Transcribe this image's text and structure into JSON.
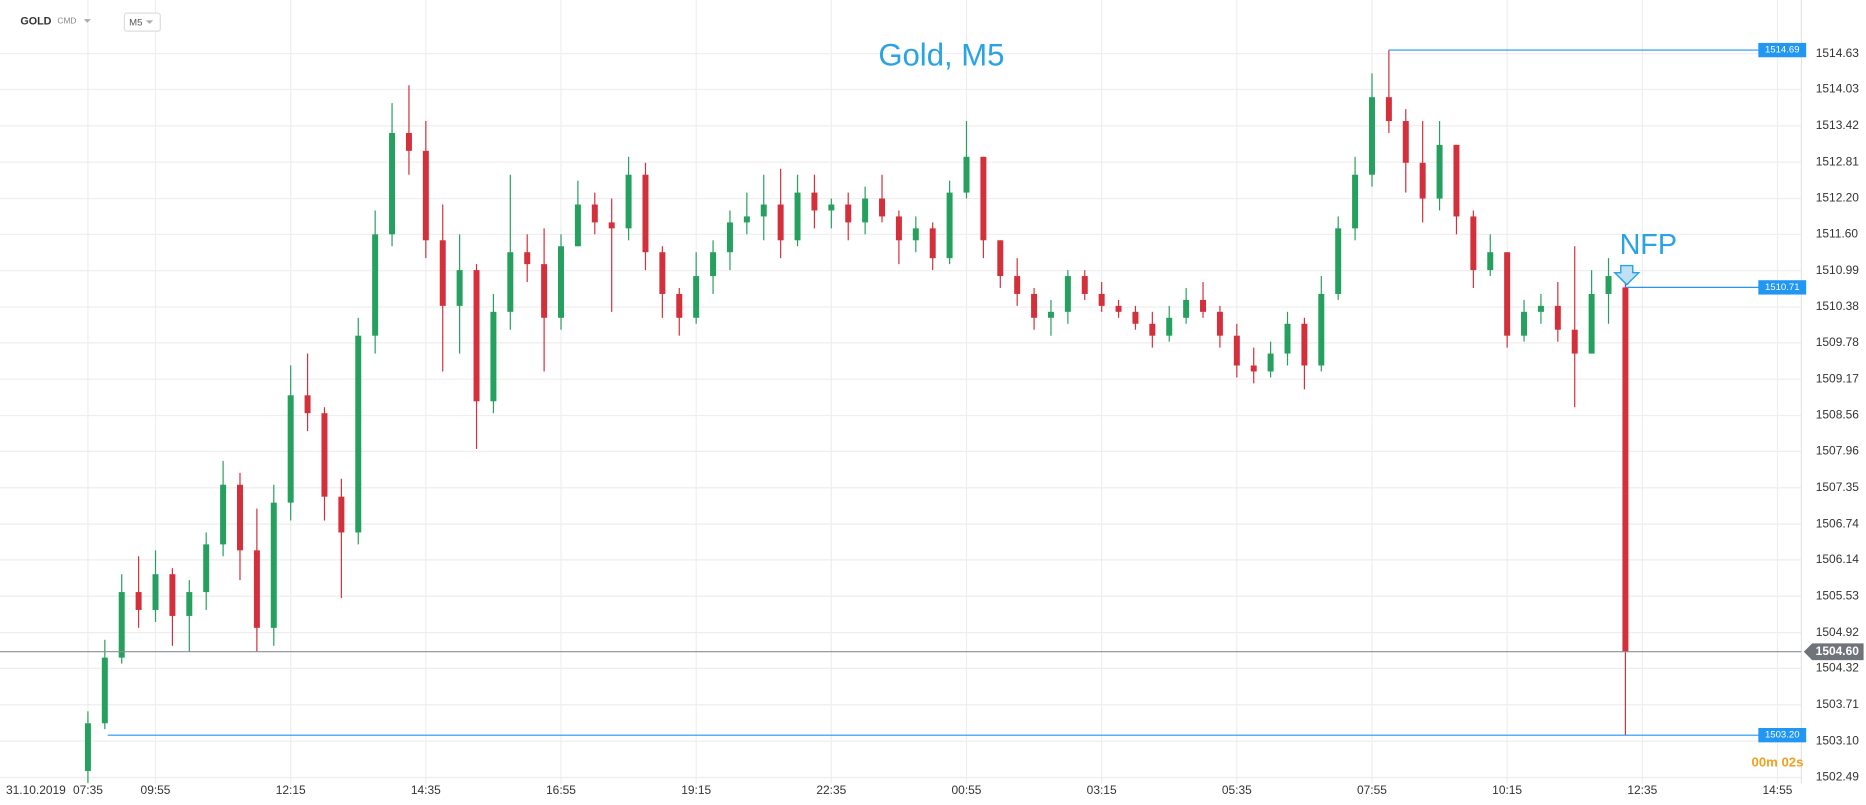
{
  "toolbar": {
    "symbol": "GOLD",
    "kind": "CMD",
    "timeframe": "M5"
  },
  "chart_data": {
    "type": "candlestick",
    "title": "Gold, M5",
    "date": "31.10.2019",
    "annotation": "NFP",
    "countdown": "00m 02s",
    "categories": [
      "07:35",
      null,
      null,
      null,
      "09:55",
      null,
      null,
      null,
      null,
      null,
      null,
      null,
      "12:15",
      null,
      null,
      null,
      null,
      null,
      null,
      null,
      "14:35",
      null,
      null,
      null,
      null,
      null,
      null,
      null,
      "16:55",
      null,
      null,
      null,
      null,
      null,
      null,
      null,
      "19:15",
      null,
      null,
      null,
      null,
      null,
      null,
      null,
      "22:35",
      null,
      null,
      null,
      null,
      null,
      null,
      null,
      "00:55",
      null,
      null,
      null,
      null,
      null,
      null,
      null,
      "03:15",
      null,
      null,
      null,
      null,
      null,
      null,
      null,
      "05:35",
      null,
      null,
      null,
      null,
      null,
      null,
      null,
      "07:55",
      null,
      null,
      null,
      null,
      null,
      null,
      null,
      "10:15",
      null,
      null,
      null,
      null,
      null,
      null,
      null,
      "12:35",
      null,
      null,
      null,
      null,
      null,
      null,
      null,
      "14:55"
    ],
    "open": [
      1502.6,
      1503.4,
      1504.5,
      1505.6,
      1505.3,
      1505.9,
      1505.2,
      1505.6,
      1506.4,
      1507.4,
      1506.3,
      1505.0,
      1507.1,
      1508.9,
      1508.6,
      1507.2,
      1506.6,
      1509.9,
      1511.6,
      1513.3,
      1513.0,
      1511.5,
      1510.4,
      1511.0,
      1508.8,
      1510.3,
      1511.3,
      1511.1,
      1510.2,
      1511.4,
      1512.1,
      1511.8,
      1511.7,
      1512.6,
      1511.3,
      1510.6,
      1510.2,
      1510.9,
      1511.3,
      1511.8,
      1511.9,
      1512.1,
      1511.5,
      1512.3,
      1512.0,
      1512.1,
      1511.8,
      1512.2,
      1511.9,
      1511.5,
      1511.7,
      1511.2,
      1512.3,
      1512.9,
      1511.5,
      1510.9,
      1510.6,
      1510.2,
      1510.3,
      1510.9,
      1510.6,
      1510.4,
      1510.3,
      1510.1,
      1509.9,
      1510.2,
      1510.5,
      1510.3,
      1509.9,
      1509.4,
      1509.3,
      1509.6,
      1510.1,
      1509.4,
      1510.6,
      1511.7,
      1512.6,
      1513.9,
      1513.5,
      1512.8,
      1512.2,
      1513.1,
      1511.9,
      1511.0,
      1511.3,
      1509.9,
      1510.3,
      1510.4,
      1510.0,
      1509.6,
      1510.6,
      1510.71,
      null,
      null,
      null,
      null,
      null,
      null,
      null,
      null,
      null
    ],
    "high": [
      1503.6,
      1504.8,
      1505.9,
      1506.2,
      1506.3,
      1506.0,
      1505.8,
      1506.6,
      1507.8,
      1507.6,
      1507.0,
      1507.4,
      1509.4,
      1509.6,
      1508.7,
      1507.5,
      1510.2,
      1512.0,
      1513.8,
      1514.1,
      1513.5,
      1512.1,
      1511.6,
      1511.1,
      1510.6,
      1512.6,
      1511.6,
      1511.7,
      1511.6,
      1512.5,
      1512.3,
      1512.2,
      1512.9,
      1512.8,
      1511.4,
      1510.7,
      1511.3,
      1511.5,
      1512.0,
      1512.3,
      1512.6,
      1512.7,
      1512.6,
      1512.6,
      1512.2,
      1512.3,
      1512.4,
      1512.6,
      1512.0,
      1511.9,
      1511.8,
      1512.5,
      1513.5,
      1512.9,
      1511.5,
      1511.2,
      1510.7,
      1510.5,
      1511.0,
      1511.0,
      1510.8,
      1510.5,
      1510.4,
      1510.3,
      1510.4,
      1510.7,
      1510.8,
      1510.4,
      1510.1,
      1509.7,
      1509.8,
      1510.3,
      1510.2,
      1510.9,
      1511.9,
      1512.9,
      1514.3,
      1514.69,
      1513.7,
      1513.5,
      1513.5,
      1513.1,
      1512.0,
      1511.6,
      1511.3,
      1510.5,
      1510.6,
      1510.8,
      1511.4,
      1511.0,
      1511.2,
      1510.9,
      null,
      null,
      null,
      null,
      null,
      null,
      null,
      null,
      null
    ],
    "low": [
      1502.4,
      1503.3,
      1504.4,
      1505.0,
      1505.1,
      1504.7,
      1504.6,
      1505.3,
      1506.2,
      1505.8,
      1504.6,
      1504.7,
      1506.8,
      1508.3,
      1506.8,
      1505.5,
      1506.4,
      1509.6,
      1511.4,
      1512.6,
      1511.2,
      1509.3,
      1509.6,
      1508.0,
      1508.6,
      1510.0,
      1510.8,
      1509.3,
      1510.0,
      1511.4,
      1511.6,
      1510.3,
      1511.5,
      1511.0,
      1510.2,
      1509.9,
      1510.1,
      1510.6,
      1511.0,
      1511.6,
      1511.5,
      1511.2,
      1511.4,
      1511.7,
      1511.7,
      1511.5,
      1511.6,
      1511.8,
      1511.1,
      1511.3,
      1511.0,
      1511.1,
      1512.2,
      1511.2,
      1510.7,
      1510.4,
      1510.0,
      1509.9,
      1510.1,
      1510.5,
      1510.3,
      1510.2,
      1510.0,
      1509.7,
      1509.8,
      1510.1,
      1510.2,
      1509.7,
      1509.2,
      1509.1,
      1509.2,
      1509.4,
      1509.0,
      1509.3,
      1510.5,
      1511.5,
      1512.4,
      1513.3,
      1512.3,
      1511.8,
      1512.0,
      1511.6,
      1510.7,
      1510.9,
      1509.7,
      1509.8,
      1510.1,
      1509.8,
      1508.7,
      1509.6,
      1510.1,
      1503.2,
      null,
      null,
      null,
      null,
      null,
      null,
      null,
      null,
      null
    ],
    "close": [
      1503.4,
      1504.5,
      1505.6,
      1505.3,
      1505.9,
      1505.2,
      1505.6,
      1506.4,
      1507.4,
      1506.3,
      1505.0,
      1507.1,
      1508.9,
      1508.6,
      1507.2,
      1506.6,
      1509.9,
      1511.6,
      1513.3,
      1513.0,
      1511.5,
      1510.4,
      1511.0,
      1508.8,
      1510.3,
      1511.3,
      1511.1,
      1510.2,
      1511.4,
      1512.1,
      1511.8,
      1511.7,
      1512.6,
      1511.3,
      1510.6,
      1510.2,
      1510.9,
      1511.3,
      1511.8,
      1511.9,
      1512.1,
      1511.5,
      1512.3,
      1512.0,
      1512.1,
      1511.8,
      1512.2,
      1511.9,
      1511.5,
      1511.7,
      1511.2,
      1512.3,
      1512.9,
      1511.5,
      1510.9,
      1510.6,
      1510.2,
      1510.3,
      1510.9,
      1510.6,
      1510.4,
      1510.3,
      1510.1,
      1509.9,
      1510.2,
      1510.5,
      1510.3,
      1509.9,
      1509.4,
      1509.3,
      1509.6,
      1510.1,
      1509.4,
      1510.6,
      1511.7,
      1512.6,
      1513.9,
      1513.5,
      1512.8,
      1512.2,
      1513.1,
      1511.9,
      1511.0,
      1511.3,
      1509.9,
      1510.3,
      1510.4,
      1510.0,
      1509.6,
      1510.6,
      1510.9,
      1504.6,
      null,
      null,
      null,
      null,
      null,
      null,
      null,
      null,
      null
    ],
    "up_color": "#26a05e",
    "down_color": "#d3303c",
    "level_color": "#2196f3",
    "levels": [
      1514.69,
      1510.71,
      {
        "value": 1503.2,
        "label": "1503.20"
      }
    ],
    "last_price": {
      "value": 1504.6,
      "label": "1504.60"
    },
    "ylim": [
      1502.39,
      1515.53
    ],
    "yticks": [
      1514.63,
      1514.03,
      1513.42,
      1512.81,
      {
        "value": 1512.2,
        "label": "1512.20"
      },
      {
        "value": 1511.6,
        "label": "1511.60"
      },
      1510.99,
      1510.38,
      1509.78,
      1509.17,
      1508.56,
      1507.96,
      1507.35,
      1506.74,
      1506.14,
      1505.53,
      1504.92,
      1504.32,
      1503.71,
      {
        "value": 1503.1,
        "label": "1503.10"
      },
      1502.49
    ],
    "grid": true
  }
}
